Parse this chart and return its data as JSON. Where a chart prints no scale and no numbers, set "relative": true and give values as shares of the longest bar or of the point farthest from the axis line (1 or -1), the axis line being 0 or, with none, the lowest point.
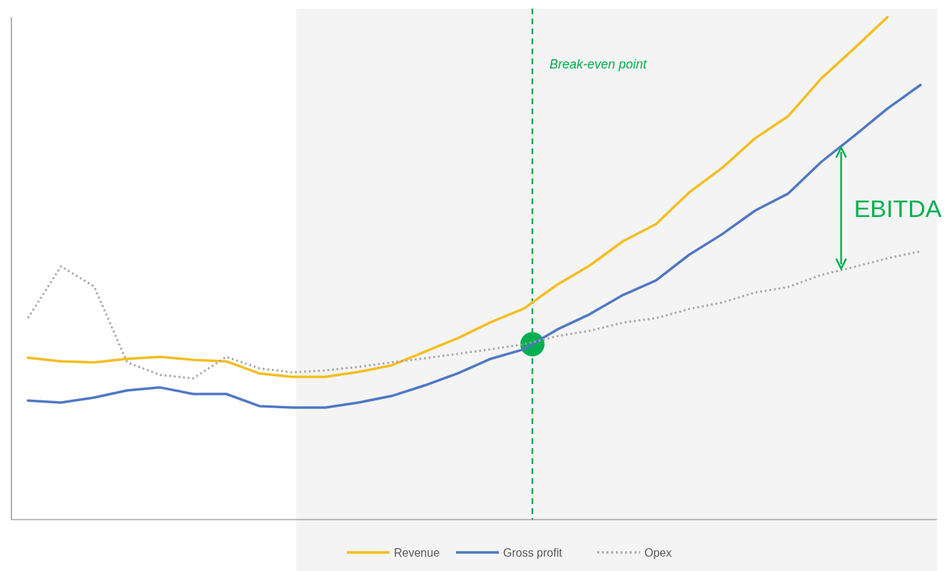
{
  "chart_data": {
    "type": "line",
    "relative": true,
    "categories": [
      null,
      null,
      null,
      null,
      null,
      null,
      null,
      null,
      null,
      null,
      null,
      null,
      null,
      null,
      null,
      null,
      null,
      null,
      null,
      null,
      null,
      null,
      null,
      null,
      null,
      null,
      null,
      null
    ],
    "series": [
      {
        "name": "Revenue",
        "color": "#f5bd1f",
        "line_style": "solid",
        "values": [
          0.322,
          0.315,
          0.313,
          0.32,
          0.324,
          0.318,
          0.315,
          0.291,
          0.284,
          0.284,
          0.294,
          0.307,
          0.334,
          0.361,
          0.393,
          0.42,
          0.467,
          0.506,
          0.554,
          0.588,
          0.651,
          0.7,
          0.759,
          0.803,
          0.878,
          0.938,
          1.0,
          null
        ]
      },
      {
        "name": "Gross profit",
        "color": "#4f78c4",
        "line_style": "solid",
        "values": [
          0.237,
          0.233,
          0.243,
          0.257,
          0.263,
          0.25,
          0.25,
          0.226,
          0.223,
          0.223,
          0.233,
          0.246,
          0.267,
          0.291,
          0.32,
          0.339,
          0.378,
          0.409,
          0.447,
          0.476,
          0.527,
          0.568,
          0.615,
          0.649,
          0.712,
          0.764,
          0.818,
          0.865
        ]
      },
      {
        "name": "Opex",
        "color": "#a6a6a6",
        "line_style": "dotted",
        "values": [
          0.401,
          0.504,
          0.464,
          0.313,
          0.288,
          0.281,
          0.324,
          0.301,
          0.293,
          0.297,
          0.304,
          0.313,
          0.321,
          0.33,
          0.339,
          0.349,
          0.365,
          0.376,
          0.392,
          0.401,
          0.419,
          0.432,
          0.452,
          0.463,
          0.487,
          0.503,
          0.52,
          0.534
        ]
      }
    ],
    "annotations": [
      "Break-even point",
      "EBITDA"
    ],
    "legend": "bottom"
  }
}
